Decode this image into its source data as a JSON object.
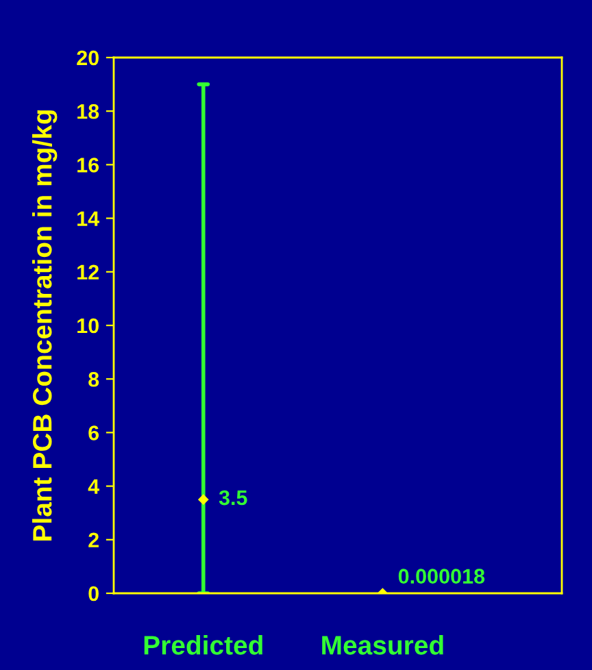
{
  "chart_data": {
    "type": "scatter",
    "ylabel": "Plant PCB Concentration in mg/kg",
    "categories": [
      "Predicted",
      "Measured"
    ],
    "series": [
      {
        "color": "#ffff00",
        "values": [
          3.5,
          1.8e-05
        ],
        "value_labels": [
          "3.5",
          "0.000018"
        ],
        "errors": [
          [
            0,
            19
          ],
          null
        ]
      }
    ],
    "marker": "diamond",
    "ylim": [
      0,
      20
    ],
    "yticks": [
      0,
      2,
      4,
      6,
      8,
      10,
      12,
      14,
      16,
      18,
      20
    ],
    "grid": false,
    "legend": false
  }
}
